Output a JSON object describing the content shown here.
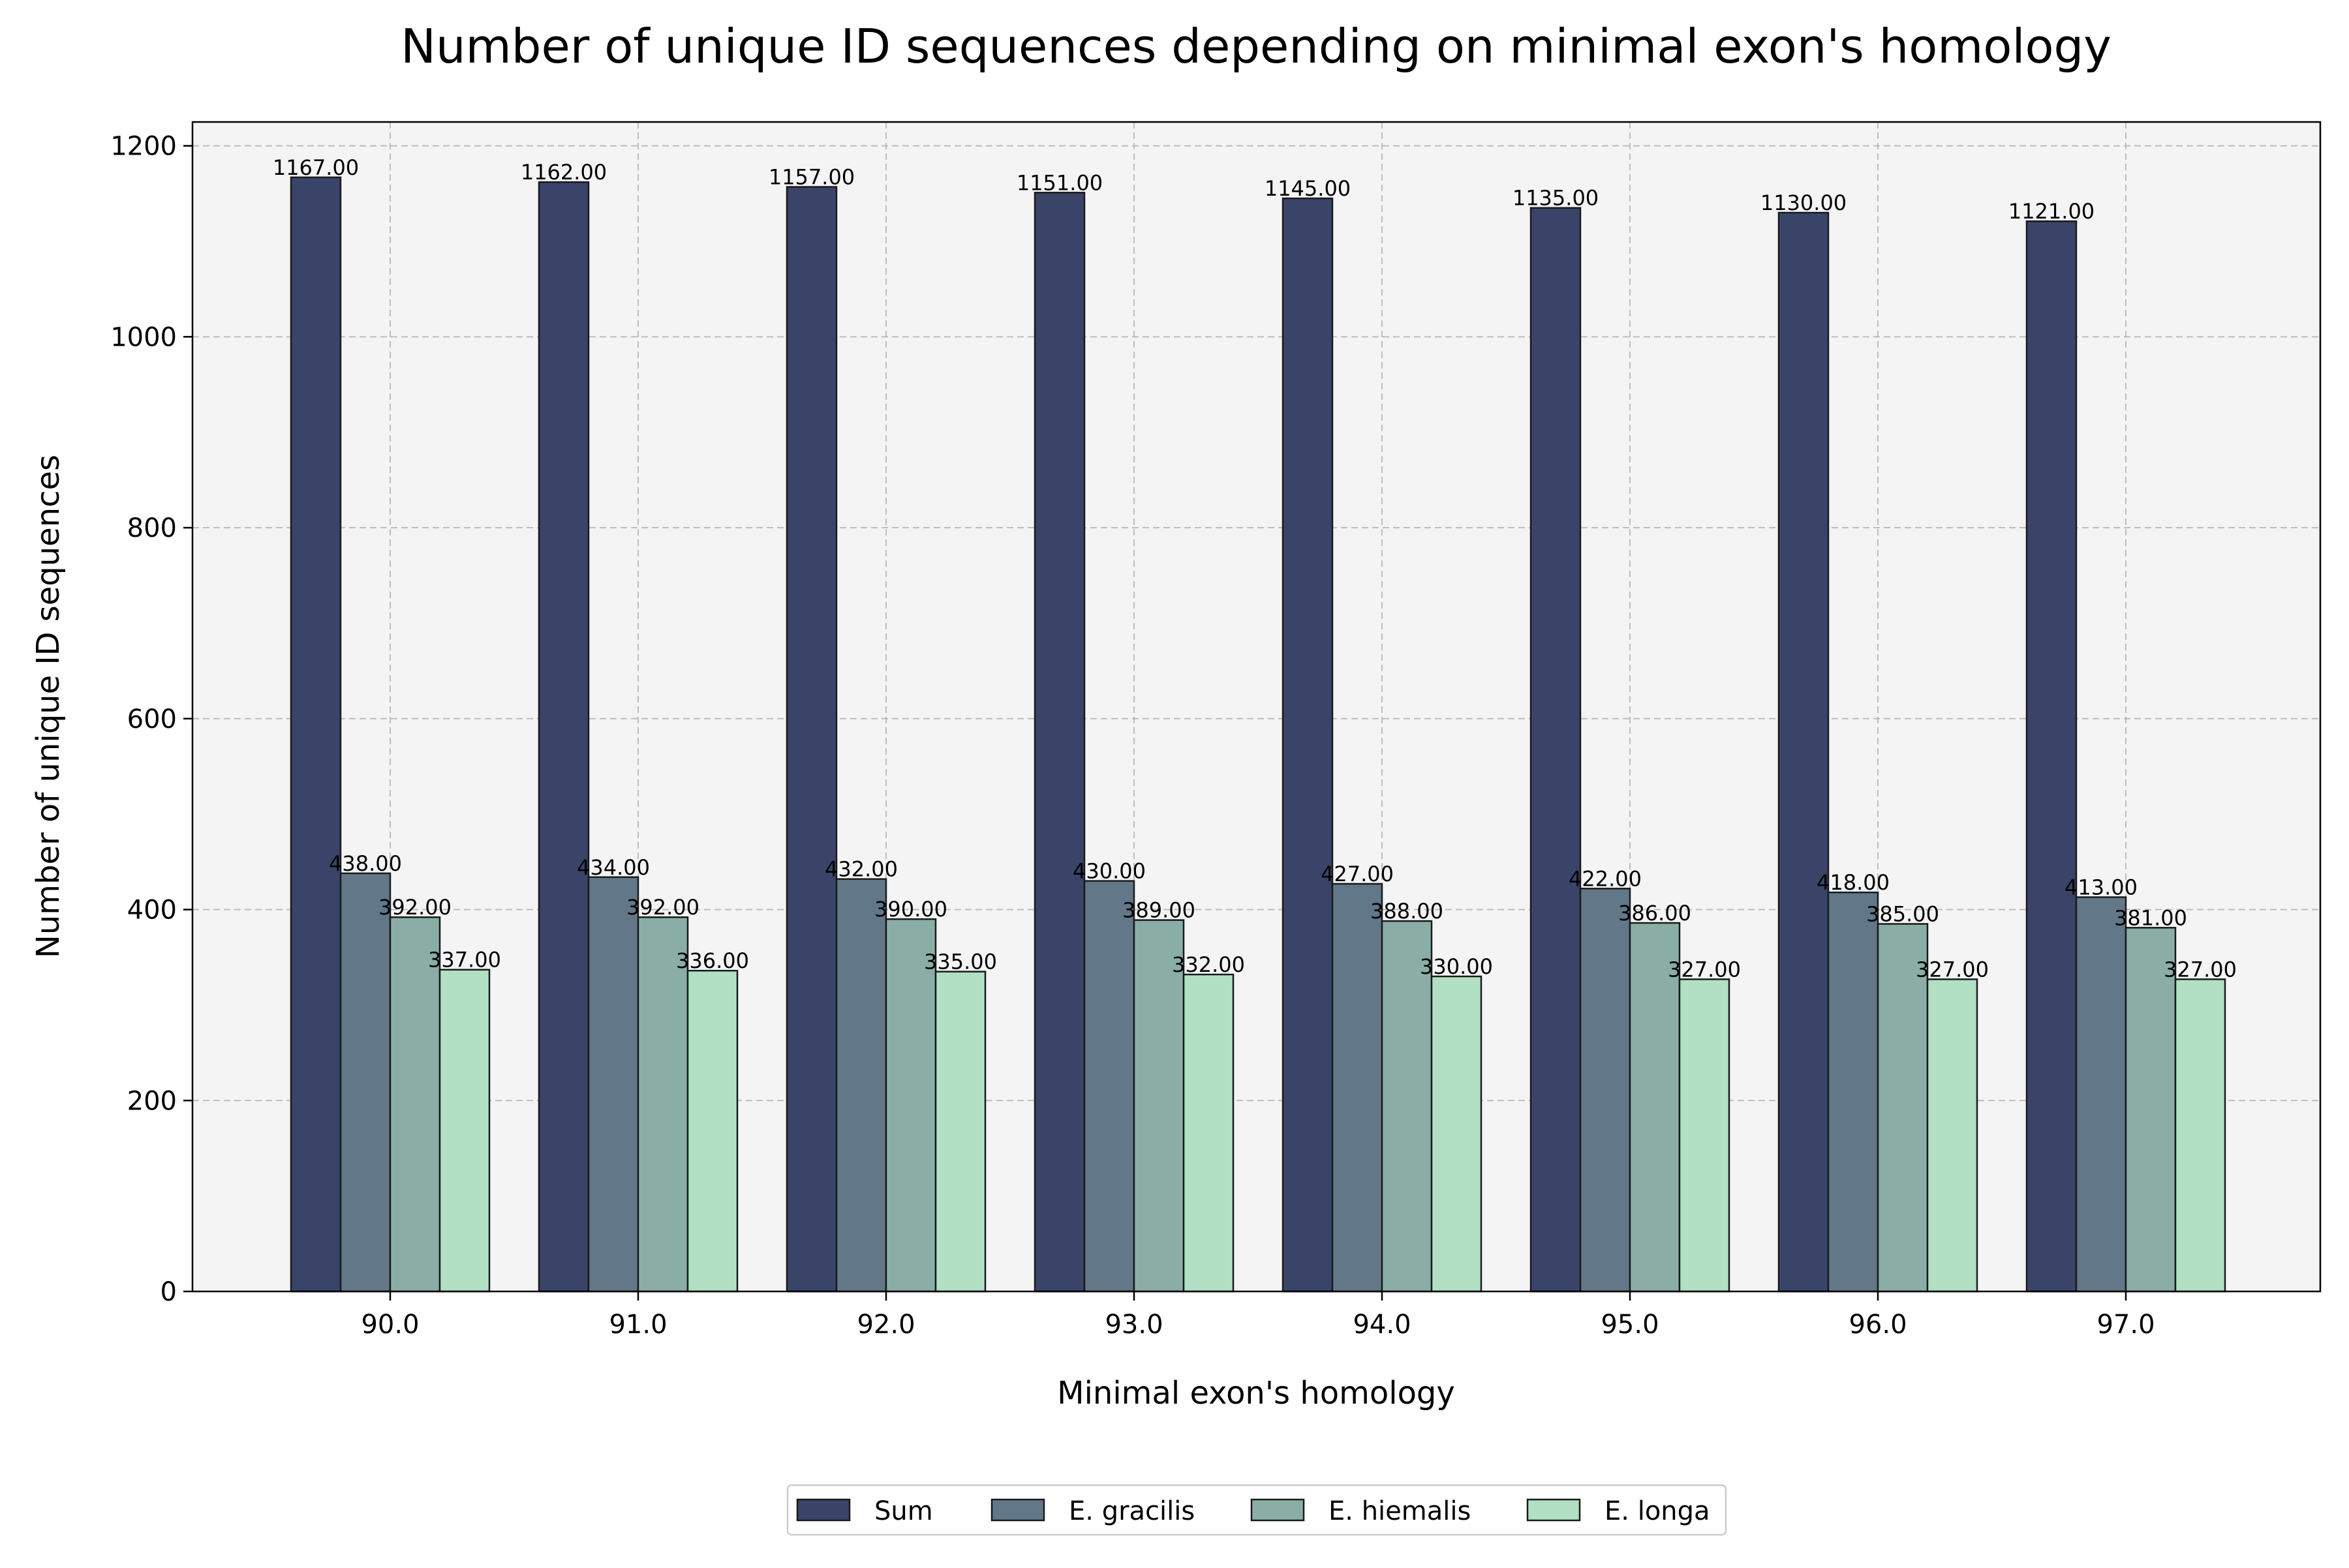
{
  "chart_data": {
    "type": "bar",
    "title": "Number of unique ID sequences depending on minimal exon's homology",
    "xlabel": "Minimal exon's homology",
    "ylabel": "Number of unique ID sequences",
    "categories": [
      "90.0",
      "91.0",
      "92.0",
      "93.0",
      "94.0",
      "95.0",
      "96.0",
      "97.0"
    ],
    "series": [
      {
        "name": "Sum",
        "color": "#3a4469",
        "values": [
          1167,
          1162,
          1157,
          1151,
          1145,
          1135,
          1130,
          1121
        ],
        "labels": [
          "1167.00",
          "1162.00",
          "1157.00",
          "1151.00",
          "1145.00",
          "1135.00",
          "1130.00",
          "1121.00"
        ]
      },
      {
        "name": "E. gracilis",
        "color": "#627788",
        "values": [
          438,
          434,
          432,
          430,
          427,
          422,
          418,
          413
        ],
        "labels": [
          "438.00",
          "434.00",
          "432.00",
          "430.00",
          "427.00",
          "422.00",
          "418.00",
          "413.00"
        ]
      },
      {
        "name": "E. hiemalis",
        "color": "#8aaea6",
        "values": [
          392,
          392,
          390,
          389,
          388,
          386,
          385,
          381
        ],
        "labels": [
          "392.00",
          "392.00",
          "390.00",
          "389.00",
          "388.00",
          "386.00",
          "385.00",
          "381.00"
        ]
      },
      {
        "name": "E. longa",
        "color": "#b1e0c4",
        "values": [
          337,
          336,
          335,
          332,
          330,
          327,
          327,
          327
        ],
        "labels": [
          "337.00",
          "336.00",
          "335.00",
          "332.00",
          "330.00",
          "327.00",
          "327.00",
          "327.00"
        ]
      }
    ],
    "ylim": [
      0,
      1225
    ],
    "yticks": [
      {
        "value": 0,
        "label": "0"
      },
      {
        "value": 200,
        "label": "200"
      },
      {
        "value": 400,
        "label": "400"
      },
      {
        "value": 600,
        "label": "600"
      },
      {
        "value": 800,
        "label": "800"
      },
      {
        "value": 1000,
        "label": "1000"
      },
      {
        "value": 1200,
        "label": "1200"
      }
    ],
    "grid": true,
    "legend_position": "bottom-center",
    "background_color": "#f4f4f4",
    "edge_color": "#1a1a1a"
  }
}
